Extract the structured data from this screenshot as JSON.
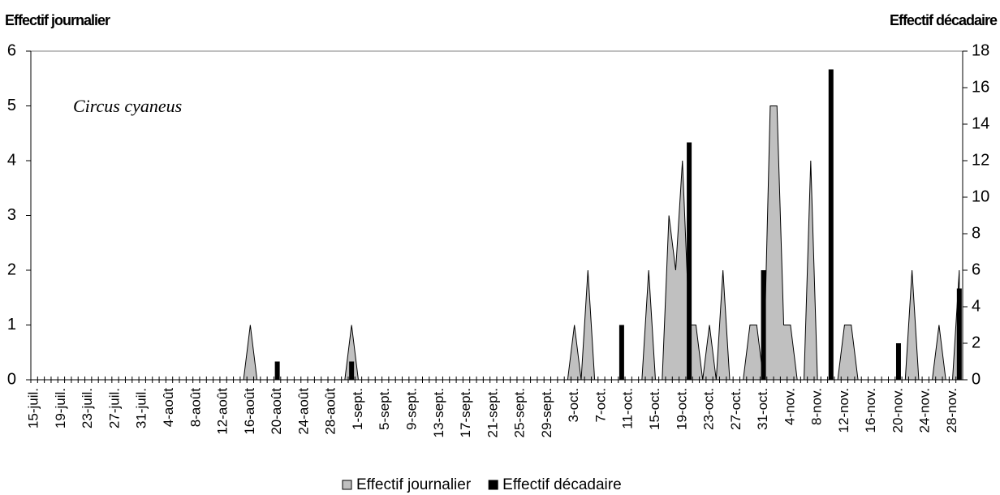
{
  "chart_data": {
    "type": "area",
    "y_label": "Effectif journalier",
    "y2_label": "Effectif décadaire",
    "annotation": "Circus cyaneus",
    "categories": [
      "15-juil.",
      null,
      null,
      null,
      "19-juil.",
      null,
      null,
      null,
      "23-juil.",
      null,
      null,
      null,
      "27-juil.",
      null,
      null,
      null,
      "31-juil.",
      null,
      null,
      null,
      "4-août",
      null,
      null,
      null,
      "8-août",
      null,
      null,
      null,
      "12-août",
      null,
      null,
      null,
      "16-août",
      null,
      null,
      null,
      "20-août",
      null,
      null,
      null,
      "24-août",
      null,
      null,
      null,
      "28-août",
      null,
      null,
      null,
      "1-sept.",
      null,
      null,
      null,
      "5-sept.",
      null,
      null,
      null,
      "9-sept.",
      null,
      null,
      null,
      "13-sept.",
      null,
      null,
      null,
      "17-sept.",
      null,
      null,
      null,
      "21-sept.",
      null,
      null,
      null,
      "25-sept.",
      null,
      null,
      null,
      "29-sept.",
      null,
      null,
      null,
      "3-oct.",
      null,
      null,
      null,
      "7-oct.",
      null,
      null,
      null,
      "11-oct.",
      null,
      null,
      null,
      "15-oct.",
      null,
      null,
      null,
      "19-oct.",
      null,
      null,
      null,
      "23-oct.",
      null,
      null,
      null,
      "27-oct.",
      null,
      null,
      null,
      "31-oct.",
      null,
      null,
      null,
      "4-nov.",
      null,
      null,
      null,
      "8-nov.",
      null,
      null,
      null,
      "12-nov.",
      null,
      null,
      null,
      "16-nov.",
      null,
      null,
      null,
      "20-nov.",
      null,
      null,
      null,
      "24-nov.",
      null,
      null,
      null,
      "28-nov.",
      null
    ],
    "series": [
      {
        "name": "Effectif journalier",
        "type": "area",
        "color": "#c0c0c0",
        "values": [
          0,
          0,
          0,
          0,
          0,
          0,
          0,
          0,
          0,
          0,
          0,
          0,
          0,
          0,
          0,
          0,
          0,
          0,
          0,
          0,
          0,
          0,
          0,
          0,
          0,
          0,
          0,
          0,
          0,
          0,
          0,
          0,
          1,
          0,
          0,
          0,
          0,
          0,
          0,
          0,
          0,
          0,
          0,
          0,
          0,
          0,
          0,
          1,
          0,
          0,
          0,
          0,
          0,
          0,
          0,
          0,
          0,
          0,
          0,
          0,
          0,
          0,
          0,
          0,
          0,
          0,
          0,
          0,
          0,
          0,
          0,
          0,
          0,
          0,
          0,
          0,
          0,
          0,
          0,
          0,
          1,
          0,
          2,
          0,
          0,
          0,
          0,
          0,
          0,
          0,
          0,
          2,
          0,
          0,
          3,
          2,
          4,
          1,
          1,
          0,
          1,
          0,
          2,
          0,
          0,
          0,
          1,
          1,
          0,
          5,
          5,
          1,
          1,
          0,
          0,
          4,
          0,
          0,
          0,
          0,
          1,
          1,
          0,
          0,
          0,
          0,
          0,
          0,
          0,
          0,
          2,
          0,
          0,
          0,
          1,
          0,
          0,
          2
        ]
      },
      {
        "name": "Effectif décadaire",
        "type": "bar",
        "axis": "y2",
        "color": "#000000",
        "values": [
          null,
          null,
          null,
          null,
          null,
          0,
          null,
          null,
          null,
          null,
          null,
          null,
          null,
          null,
          null,
          null,
          0,
          null,
          null,
          null,
          null,
          null,
          null,
          null,
          null,
          null,
          0,
          null,
          null,
          null,
          null,
          null,
          null,
          null,
          null,
          null,
          1,
          null,
          null,
          null,
          null,
          null,
          null,
          null,
          null,
          null,
          null,
          1,
          null,
          null,
          null,
          null,
          null,
          null,
          null,
          null,
          null,
          0,
          null,
          null,
          null,
          null,
          null,
          null,
          null,
          null,
          null,
          0,
          null,
          null,
          null,
          null,
          null,
          null,
          null,
          null,
          null,
          0,
          null,
          null,
          null,
          null,
          null,
          null,
          null,
          null,
          null,
          3,
          null,
          null,
          null,
          null,
          null,
          null,
          null,
          null,
          null,
          13,
          null,
          null,
          null,
          null,
          null,
          null,
          null,
          null,
          null,
          null,
          6,
          null,
          null,
          null,
          null,
          null,
          null,
          null,
          null,
          null,
          17,
          null,
          null,
          null,
          null,
          null,
          null,
          null,
          null,
          null,
          2,
          null,
          null,
          null,
          null,
          null,
          null,
          null,
          null,
          5
        ]
      }
    ],
    "ylim": [
      0,
      6
    ],
    "yticks": [
      0,
      1,
      2,
      3,
      4,
      5,
      6
    ],
    "y2lim": [
      0,
      18
    ],
    "y2ticks": [
      0,
      2,
      4,
      6,
      8,
      10,
      12,
      14,
      16,
      18
    ],
    "legend": "bottom"
  }
}
